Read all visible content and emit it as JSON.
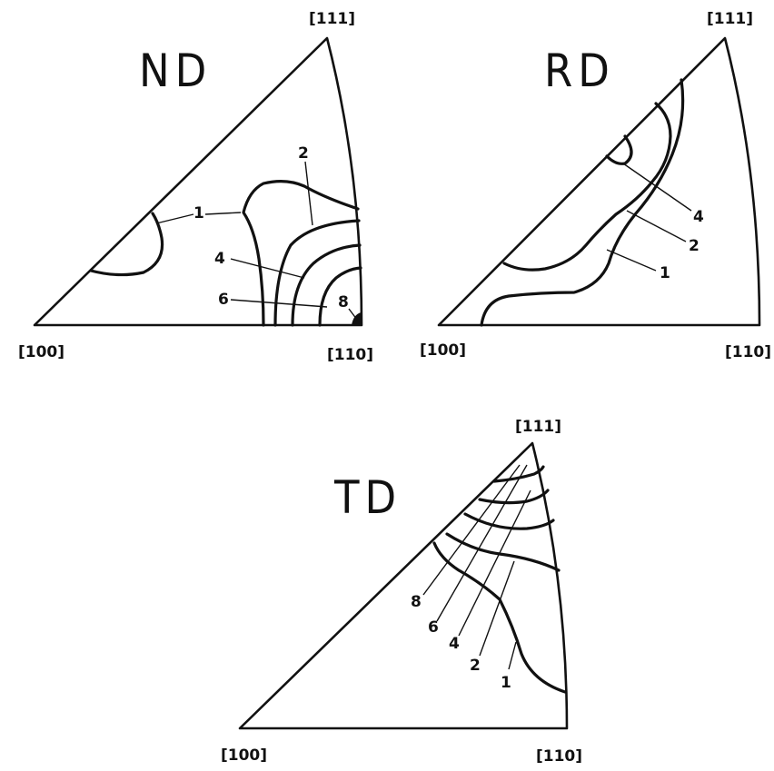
{
  "panels": {
    "nd": {
      "title": "ND",
      "corner_100": "[100]",
      "corner_110": "[110]",
      "corner_111": "[111]",
      "levels": [
        "1",
        "2",
        "4",
        "6",
        "8"
      ]
    },
    "rd": {
      "title": "RD",
      "corner_100": "[100]",
      "corner_110": "[110]",
      "corner_111": "[111]",
      "levels": [
        "4",
        "2",
        "1"
      ]
    },
    "td": {
      "title": "TD",
      "corner_100": "[100]",
      "corner_110": "[110]",
      "corner_111": "[111]",
      "levels": [
        "8",
        "6",
        "4",
        "2",
        "1"
      ]
    }
  }
}
